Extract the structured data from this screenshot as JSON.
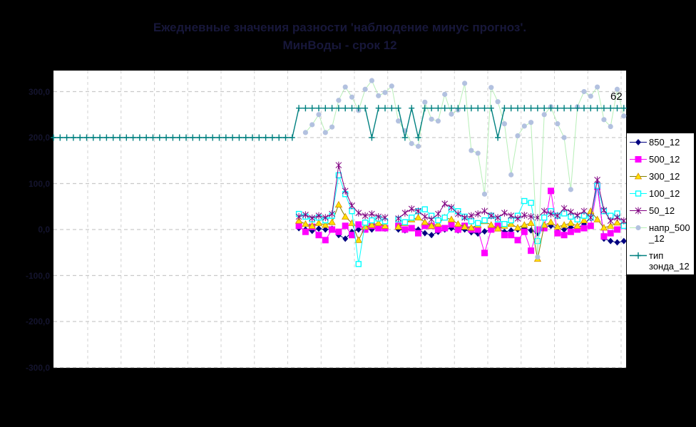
{
  "title": {
    "line1": "Ежедневные значения разности 'наблюдение минус прогноз'.",
    "line2": "МинВоды - срок 12"
  },
  "annotation": {
    "text": "62"
  },
  "colors": {
    "background": "#000000",
    "plot_background": "#ffffff",
    "gridline": "#c9c9c9",
    "title_text": "#17173a",
    "axis_label_text": "#14142e",
    "legend_border": "#000000",
    "legend_text": "#000000"
  },
  "legend": {
    "items": [
      {
        "label_lines": [
          "850_12"
        ],
        "series_index": 0
      },
      {
        "label_lines": [
          "500_12"
        ],
        "series_index": 1
      },
      {
        "label_lines": [
          "300_12"
        ],
        "series_index": 2
      },
      {
        "label_lines": [
          "100_12"
        ],
        "series_index": 3
      },
      {
        "label_lines": [
          "50_12"
        ],
        "series_index": 4
      },
      {
        "label_lines": [
          "напр_500",
          "_12"
        ],
        "series_index": 5
      },
      {
        "label_lines": [
          "тип",
          "зонда_12"
        ],
        "series_index": 6
      }
    ]
  },
  "chart_data": {
    "type": "line",
    "title": "Ежедневные значения разности 'наблюдение минус прогноз'. МинВоды - срок 12",
    "grid": "dashed",
    "legend_position": "right",
    "y_axis": {
      "min": -300,
      "max": 345,
      "major_unit": 100,
      "tick_values": [
        300,
        200,
        100,
        0,
        -100,
        -200,
        -300
      ],
      "tick_labels": [
        "300,0",
        "200,0",
        "100,0",
        "0,0",
        "-100,0",
        "-200,0",
        "-300,0"
      ]
    },
    "x_axis": {
      "point_count": 87,
      "labels_visible": false
    },
    "series": [
      {
        "name": "850_12",
        "color": "#000080",
        "marker": "diamond",
        "marker_fill": "#000080",
        "line_width": 1,
        "start_index": 37,
        "values": [
          3,
          0,
          -3,
          2,
          0,
          2,
          -12,
          -20,
          -5,
          0,
          3,
          0,
          5,
          2,
          null,
          0,
          -2,
          3,
          0,
          -8,
          -12,
          -5,
          0,
          3,
          -2,
          0,
          -6,
          -9,
          -4,
          0,
          3,
          -5,
          -2,
          0,
          3,
          -2,
          -8,
          5,
          8,
          3,
          0,
          5,
          3,
          12,
          26,
          99,
          -20,
          -25,
          -28,
          -25
        ]
      },
      {
        "name": "500_12",
        "color": "#ff00ff",
        "marker": "square",
        "marker_fill": "#ff00ff",
        "line_width": 1,
        "start_index": 37,
        "values": [
          8,
          -5,
          6,
          -12,
          -23,
          0,
          -5,
          8,
          -12,
          11,
          0,
          8,
          3,
          3,
          null,
          8,
          0,
          3,
          -8,
          8,
          8,
          0,
          3,
          11,
          0,
          8,
          0,
          0,
          -51,
          0,
          8,
          -12,
          -12,
          -23,
          -5,
          -46,
          0,
          3,
          84,
          -8,
          -12,
          -5,
          0,
          3,
          8,
          93,
          -15,
          -8,
          0,
          8
        ]
      },
      {
        "name": "300_12",
        "color": "#808000",
        "marker": "triangle",
        "marker_fill": "#ffe100",
        "marker_stroke": "#d68d00",
        "line_width": 1,
        "start_index": 37,
        "values": [
          19,
          12,
          8,
          14,
          10,
          16,
          54,
          28,
          14,
          -23,
          6,
          10,
          14,
          8,
          null,
          6,
          14,
          22,
          26,
          16,
          8,
          12,
          26,
          22,
          12,
          6,
          4,
          10,
          18,
          10,
          2,
          8,
          12,
          4,
          10,
          14,
          -64,
          10,
          16,
          6,
          10,
          14,
          8,
          20,
          40,
          22,
          4,
          8,
          15,
          10
        ]
      },
      {
        "name": "100_12",
        "color": "#00ffff",
        "marker": "open-square",
        "marker_fill": "#ffffff",
        "line_width": 1,
        "start_index": 37,
        "values": [
          34,
          28,
          22,
          26,
          20,
          30,
          118,
          77,
          40,
          -75,
          15,
          20,
          24,
          18,
          null,
          22,
          16,
          26,
          40,
          44,
          30,
          20,
          26,
          44,
          40,
          28,
          18,
          14,
          20,
          30,
          22,
          12,
          20,
          30,
          62,
          58,
          -25,
          26,
          40,
          30,
          35,
          28,
          22,
          30,
          26,
          95,
          40,
          30,
          35,
          8
        ]
      },
      {
        "name": "50_12",
        "color": "#800080",
        "marker": "star",
        "marker_fill": "#800080",
        "line_width": 1,
        "start_index": 37,
        "values": [
          28,
          32,
          25,
          30,
          26,
          34,
          140,
          84,
          52,
          36,
          30,
          34,
          28,
          26,
          null,
          24,
          36,
          45,
          40,
          28,
          22,
          34,
          56,
          48,
          34,
          26,
          30,
          34,
          40,
          30,
          26,
          36,
          30,
          24,
          31,
          28,
          26,
          40,
          34,
          30,
          46,
          38,
          31,
          40,
          26,
          108,
          42,
          19,
          26,
          19
        ]
      },
      {
        "name": "напр_500_12",
        "color": "#b7efb7",
        "marker": "circle",
        "marker_fill": "#afbede",
        "line_width": 1,
        "start_index": 38,
        "values": [
          211,
          228,
          250,
          211,
          223,
          281,
          310,
          288,
          259,
          305,
          324,
          291,
          298,
          312,
          236,
          215,
          187,
          181,
          277,
          240,
          236,
          294,
          251,
          260,
          318,
          172,
          166,
          77,
          309,
          278,
          230,
          119,
          204,
          225,
          233,
          -60,
          250,
          267,
          230,
          200,
          87,
          267,
          300,
          290,
          310,
          239,
          224,
          305,
          247
        ]
      },
      {
        "name": "тип зонда_12",
        "color": "#008080",
        "marker": "plus",
        "marker_fill": "#008080",
        "line_width": 1.4,
        "start_index": 0,
        "step_spec": {
          "before": 200,
          "after": 264,
          "change_index": 37,
          "dip_indices": [
            48,
            53,
            55,
            67
          ],
          "count": 87
        }
      }
    ]
  }
}
